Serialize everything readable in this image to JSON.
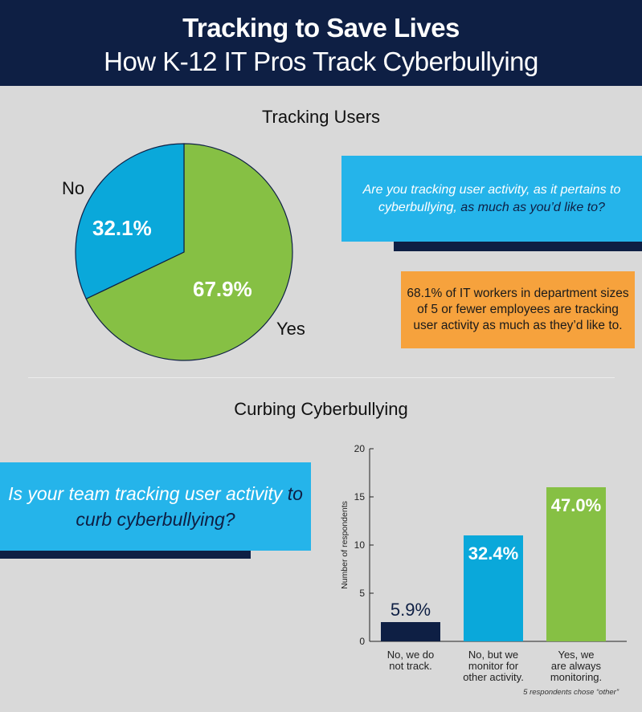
{
  "header": {
    "title": "Tracking to Save Lives",
    "subtitle": "How K-12 IT Pros Track Cyberbullying"
  },
  "section1": {
    "title": "Tracking Users",
    "question_part1": "Are you tracking user activity, as it pertains to cyberbullying,",
    "question_part2": " as much as you’d like to?",
    "note": "68.1% of IT workers in department sizes of 5 or fewer employees are tracking user activity as much as they’d like to."
  },
  "section2": {
    "title": "Curbing Cyberbullying",
    "question_part1": "Is your team tracking user activity",
    "question_part2": " to curb cyberbullying?",
    "footnote": "5 respondents chose “other”"
  },
  "colors": {
    "navy": "#0e1f44",
    "blue": "#25b4ea",
    "pie_no": "#0aa8da",
    "green": "#86c044",
    "orange": "#f6a23d",
    "bar_navy": "#0e1f44",
    "bar_blue": "#0aa8da",
    "bar_green": "#86c044"
  },
  "chart_data": [
    {
      "type": "pie",
      "title": "Tracking Users",
      "slices": [
        {
          "label": "Yes",
          "value": 67.9,
          "value_label": "67.9%",
          "color": "#86c044"
        },
        {
          "label": "No",
          "value": 32.1,
          "value_label": "32.1%",
          "color": "#0aa8da"
        }
      ]
    },
    {
      "type": "bar",
      "title": "Curbing Cyberbullying",
      "ylabel": "Number of respondents",
      "ylim": [
        0,
        20
      ],
      "yticks": [
        0,
        5,
        10,
        15,
        20
      ],
      "categories": [
        [
          "No, we do",
          "not track."
        ],
        [
          "No, but we",
          "monitor for",
          "other activity."
        ],
        [
          "Yes, we",
          "are always",
          "monitoring."
        ]
      ],
      "values": [
        2,
        11,
        16
      ],
      "value_labels": [
        "5.9%",
        "32.4%",
        "47.0%"
      ],
      "colors": [
        "#0e1f44",
        "#0aa8da",
        "#86c044"
      ]
    }
  ]
}
